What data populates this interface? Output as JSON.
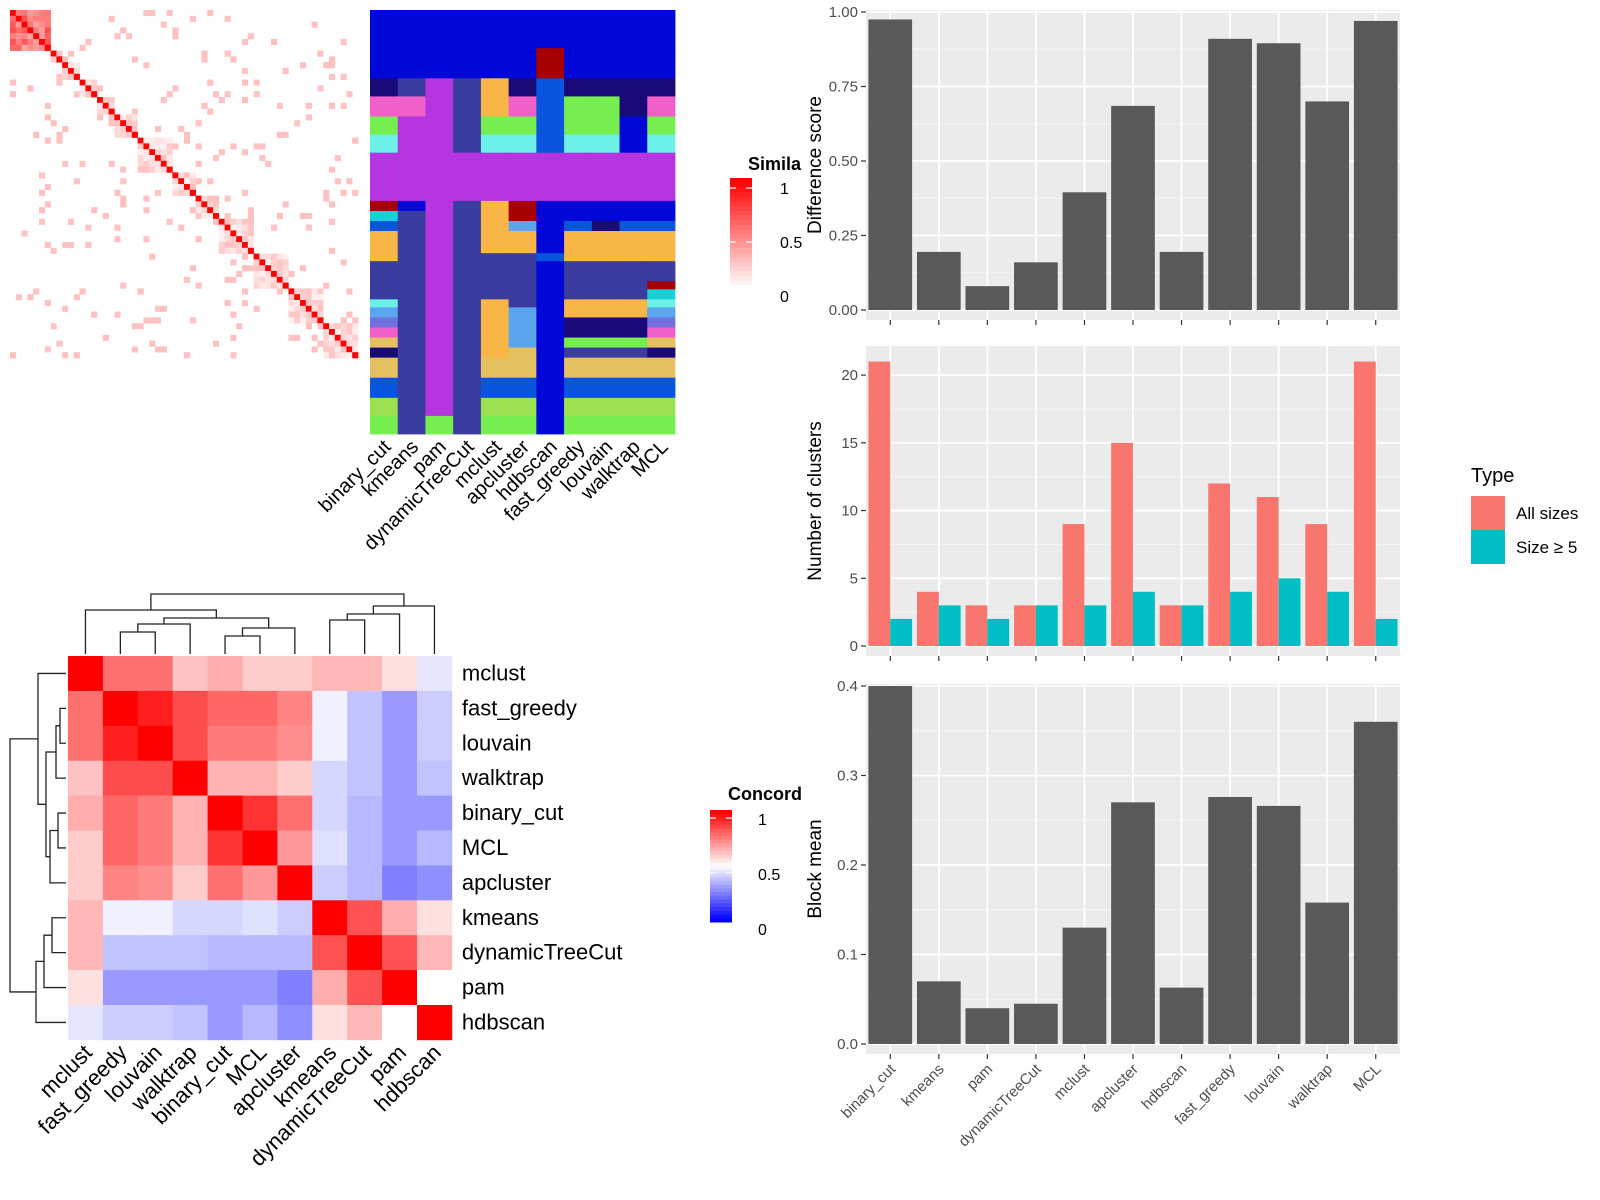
{
  "chart_data": [
    {
      "type": "heatmap",
      "name": "similarity-heatmap",
      "legend_title": "Simila",
      "legend_ticks": [
        "1",
        "0.5",
        "0"
      ],
      "scale": [
        0,
        1
      ],
      "low_color": "#ffffff",
      "high_color": "#ff0000",
      "n_cells": 60
    },
    {
      "type": "table",
      "name": "cluster-assignment-grid",
      "columns": [
        "binary_cut",
        "kmeans",
        "pam",
        "dynamicTreeCut",
        "mclust",
        "apcluster",
        "hdbscan",
        "fast_greedy",
        "louvain",
        "walktrap",
        "MCL"
      ]
    },
    {
      "type": "heatmap",
      "name": "concordance-heatmap",
      "legend_title": "Concord",
      "legend_ticks": [
        "1",
        "0.5",
        "0"
      ],
      "scale": [
        0,
        1
      ],
      "low_color": "#0000ff",
      "mid_color": "#ffffff",
      "high_color": "#ff0000",
      "labels": [
        "mclust",
        "fast_greedy",
        "louvain",
        "walktrap",
        "binary_cut",
        "MCL",
        "apcluster",
        "kmeans",
        "dynamicTreeCut",
        "pam",
        "hdbscan"
      ],
      "matrix": [
        [
          1.0,
          0.78,
          0.78,
          0.62,
          0.66,
          0.6,
          0.6,
          0.64,
          0.64,
          0.56,
          0.45
        ],
        [
          0.78,
          1.0,
          0.94,
          0.85,
          0.8,
          0.8,
          0.74,
          0.47,
          0.38,
          0.3,
          0.4
        ],
        [
          0.78,
          0.94,
          1.0,
          0.85,
          0.76,
          0.76,
          0.72,
          0.47,
          0.38,
          0.3,
          0.4
        ],
        [
          0.62,
          0.85,
          0.85,
          1.0,
          0.65,
          0.65,
          0.6,
          0.42,
          0.38,
          0.3,
          0.38
        ],
        [
          0.66,
          0.8,
          0.76,
          0.65,
          1.0,
          0.9,
          0.78,
          0.42,
          0.36,
          0.3,
          0.3
        ],
        [
          0.6,
          0.8,
          0.76,
          0.65,
          0.9,
          1.0,
          0.7,
          0.44,
          0.36,
          0.3,
          0.36
        ],
        [
          0.6,
          0.74,
          0.72,
          0.6,
          0.78,
          0.7,
          1.0,
          0.4,
          0.36,
          0.25,
          0.28
        ],
        [
          0.64,
          0.47,
          0.47,
          0.42,
          0.42,
          0.44,
          0.4,
          1.0,
          0.84,
          0.66,
          0.56
        ],
        [
          0.64,
          0.38,
          0.38,
          0.38,
          0.36,
          0.36,
          0.36,
          0.84,
          1.0,
          0.84,
          0.64
        ],
        [
          0.56,
          0.3,
          0.3,
          0.3,
          0.3,
          0.3,
          0.25,
          0.66,
          0.84,
          1.0,
          0.5
        ],
        [
          0.45,
          0.4,
          0.4,
          0.38,
          0.3,
          0.36,
          0.28,
          0.56,
          0.64,
          0.5,
          1.0
        ]
      ]
    },
    {
      "type": "bar",
      "name": "difference-score",
      "categories": [
        "binary_cut",
        "kmeans",
        "pam",
        "dynamicTreeCut",
        "mclust",
        "apcluster",
        "hdbscan",
        "fast_greedy",
        "louvain",
        "walktrap",
        "MCL"
      ],
      "values": [
        0.975,
        0.195,
        0.08,
        0.16,
        0.395,
        0.685,
        0.195,
        0.91,
        0.895,
        0.7,
        0.97
      ],
      "ylabel": "Difference score",
      "ylim": [
        0,
        1.0
      ],
      "yticks": [
        "0.00",
        "0.25",
        "0.50",
        "0.75",
        "1.00"
      ],
      "grid": true
    },
    {
      "type": "bar",
      "name": "number-of-clusters",
      "categories": [
        "binary_cut",
        "kmeans",
        "pam",
        "dynamicTreeCut",
        "mclust",
        "apcluster",
        "hdbscan",
        "fast_greedy",
        "louvain",
        "walktrap",
        "MCL"
      ],
      "series": [
        {
          "name": "All sizes",
          "color": "#F8766D",
          "values": [
            21,
            4,
            3,
            3,
            9,
            15,
            3,
            12,
            11,
            9,
            21
          ]
        },
        {
          "name": "Size ≥ 5",
          "color": "#00BFC4",
          "values": [
            2,
            3,
            2,
            3,
            3,
            4,
            3,
            4,
            5,
            4,
            2
          ]
        }
      ],
      "ylabel": "Number of clusters",
      "ylim": [
        0,
        22
      ],
      "yticks": [
        "0",
        "5",
        "10",
        "15",
        "20"
      ],
      "legend_title": "Type",
      "legend_position": "right",
      "grid": true
    },
    {
      "type": "bar",
      "name": "block-mean",
      "categories": [
        "binary_cut",
        "kmeans",
        "pam",
        "dynamicTreeCut",
        "mclust",
        "apcluster",
        "hdbscan",
        "fast_greedy",
        "louvain",
        "walktrap",
        "MCL"
      ],
      "values": [
        0.4,
        0.07,
        0.04,
        0.045,
        0.13,
        0.27,
        0.063,
        0.276,
        0.266,
        0.158,
        0.36
      ],
      "ylabel": "Block mean",
      "ylim": [
        0,
        0.4
      ],
      "yticks": [
        "0.0",
        "0.1",
        "0.2",
        "0.3",
        "0.4"
      ],
      "grid": true
    }
  ]
}
